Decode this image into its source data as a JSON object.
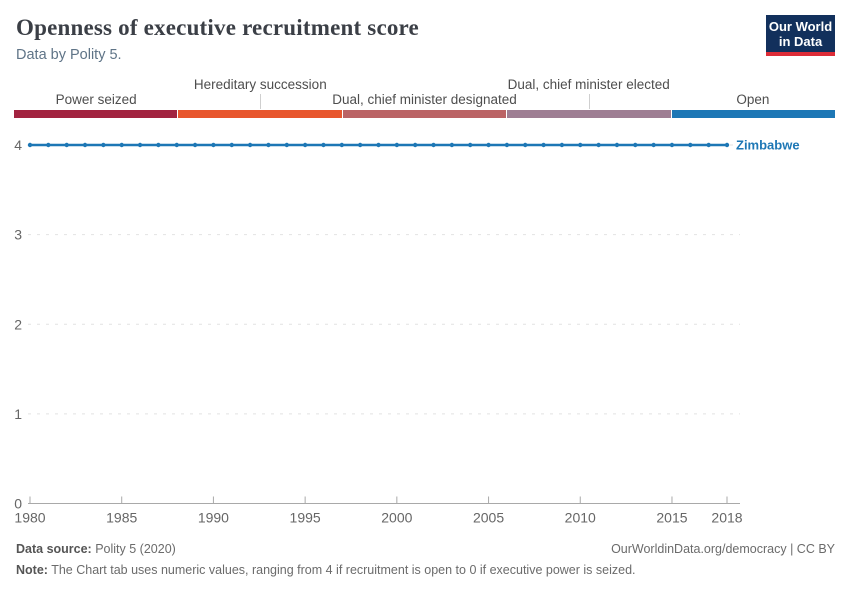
{
  "header": {
    "title": "Openness of executive recruitment score",
    "subtitle": "Data by Polity 5.",
    "logo": {
      "line1": "Our World",
      "line2": "in Data",
      "bg_color": "#12305c",
      "accent_color": "#dd2c37"
    }
  },
  "scale": {
    "segments": [
      {
        "label": "Power seized",
        "color": "#a22340",
        "row": "bottom"
      },
      {
        "label": "Hereditary succession",
        "color": "#e8562d",
        "row": "top"
      },
      {
        "label": "Dual, chief minister designated",
        "color": "#bb6365",
        "row": "bottom"
      },
      {
        "label": "Dual, chief minister elected",
        "color": "#9e7e93",
        "row": "top"
      },
      {
        "label": "Open",
        "color": "#1d77b5",
        "row": "bottom"
      }
    ]
  },
  "chart_data": {
    "type": "line",
    "title": "Openness of executive recruitment score",
    "xlabel": "",
    "ylabel": "",
    "xlim": [
      1980,
      2018
    ],
    "ylim": [
      0,
      4
    ],
    "x_ticks": [
      1980,
      1985,
      1990,
      1995,
      2000,
      2005,
      2010,
      2015,
      2018
    ],
    "y_ticks": [
      0,
      1,
      2,
      3,
      4
    ],
    "grid": "dashed-horizontal",
    "legend_position": "end-of-line",
    "series": [
      {
        "name": "Zimbabwe",
        "color": "#1d77b5",
        "x": [
          1980,
          1981,
          1982,
          1983,
          1984,
          1985,
          1986,
          1987,
          1988,
          1989,
          1990,
          1991,
          1992,
          1993,
          1994,
          1995,
          1996,
          1997,
          1998,
          1999,
          2000,
          2001,
          2002,
          2003,
          2004,
          2005,
          2006,
          2007,
          2008,
          2009,
          2010,
          2011,
          2012,
          2013,
          2014,
          2015,
          2016,
          2017,
          2018
        ],
        "values": [
          4,
          4,
          4,
          4,
          4,
          4,
          4,
          4,
          4,
          4,
          4,
          4,
          4,
          4,
          4,
          4,
          4,
          4,
          4,
          4,
          4,
          4,
          4,
          4,
          4,
          4,
          4,
          4,
          4,
          4,
          4,
          4,
          4,
          4,
          4,
          4,
          4,
          4,
          4
        ]
      }
    ],
    "style": {
      "grid_color": "#e2e2e2",
      "axis_color": "#a9a9a9",
      "tick_label_color": "#666666"
    }
  },
  "footer": {
    "source_label": "Data source:",
    "source_value": " Polity 5 (2020)",
    "note_label": "Note:",
    "note_value": " The Chart tab uses numeric values, ranging from 4 if recruitment is open to 0 if executive power is seized.",
    "credit": "OurWorldinData.org/democracy | CC BY"
  }
}
